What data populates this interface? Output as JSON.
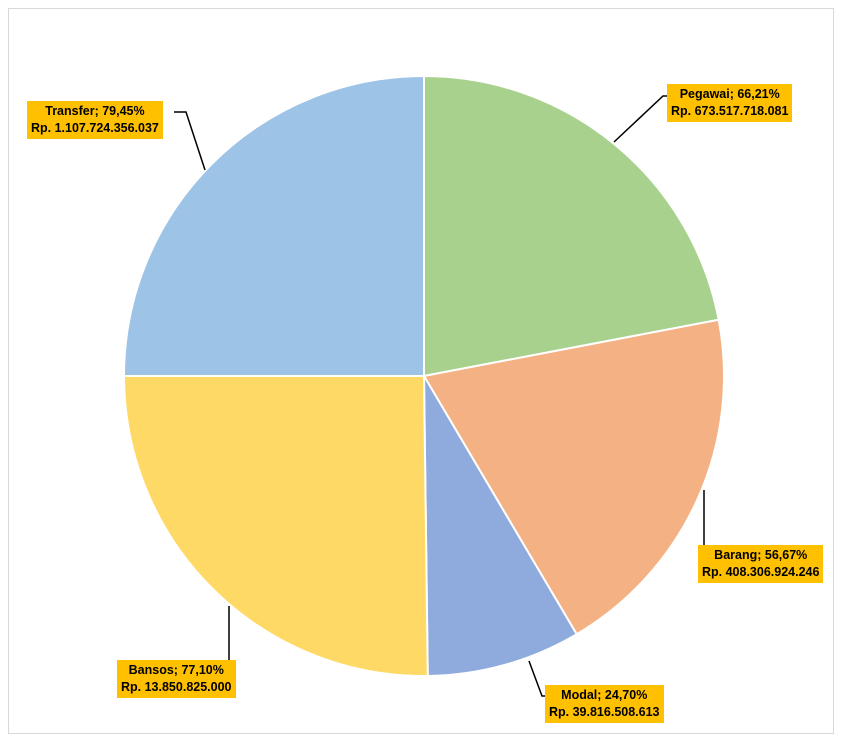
{
  "chart_data": {
    "type": "pie",
    "slices": [
      {
        "category": "Pegawai",
        "percent": "66,21%",
        "amount": "Rp. 673.517.718.081",
        "value": 22.0,
        "color": "#a9d18e"
      },
      {
        "category": "Barang",
        "percent": "56,67%",
        "amount": "Rp. 408.306.924.246",
        "value": 19.5,
        "color": "#f4b183"
      },
      {
        "category": "Modal",
        "percent": "24,70%",
        "amount": "Rp. 39.816.508.613",
        "value": 8.3,
        "color": "#8faadc"
      },
      {
        "category": "Bansos",
        "percent": "77,10%",
        "amount": "Rp. 13.850.825.000",
        "value": 25.2,
        "color": "#ffd966"
      },
      {
        "category": "Transfer",
        "percent": "79,45%",
        "amount": "Rp. 1.107.724.356.037",
        "value": 25.0,
        "color": "#9dc3e6"
      }
    ],
    "start_angle_deg": 0,
    "direction": "clockwise",
    "legend": "none",
    "label_separator": "; "
  }
}
